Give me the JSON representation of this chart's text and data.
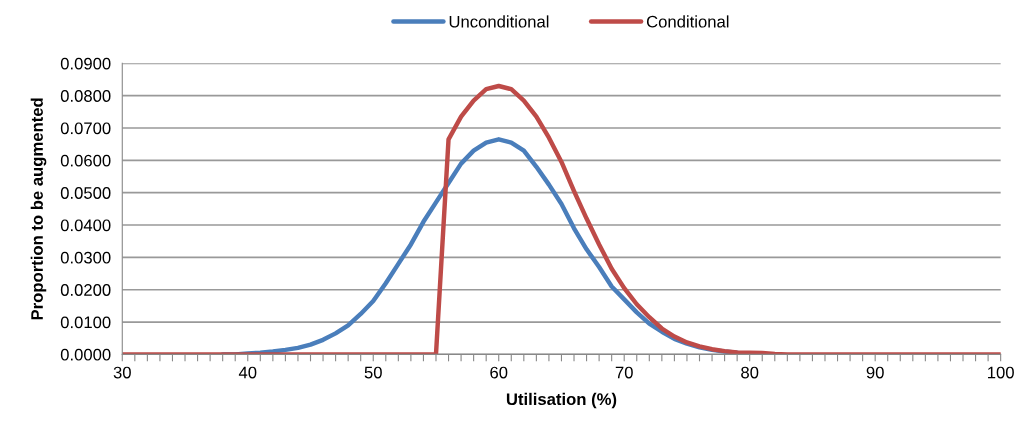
{
  "chart_data": {
    "type": "line",
    "xlabel": "Utilisation (%)",
    "ylabel": "Proportion to be augmented",
    "x": [
      30,
      31,
      32,
      33,
      34,
      35,
      36,
      37,
      38,
      39,
      40,
      41,
      42,
      43,
      44,
      45,
      46,
      47,
      48,
      49,
      50,
      51,
      52,
      53,
      54,
      55,
      56,
      57,
      58,
      59,
      60,
      61,
      62,
      63,
      64,
      65,
      66,
      67,
      68,
      69,
      70,
      71,
      72,
      73,
      74,
      75,
      76,
      77,
      78,
      79,
      80,
      81,
      82,
      83,
      84,
      85,
      86,
      87,
      88,
      89,
      90,
      91,
      92,
      93,
      94,
      95,
      96,
      97,
      98,
      99,
      100
    ],
    "series": [
      {
        "name": "Unconditional",
        "color": "#4a7ebb",
        "values": [
          null,
          null,
          null,
          null,
          null,
          null,
          null,
          null,
          0,
          0,
          0.0003,
          0.0005,
          0.0009,
          0.0014,
          0.002,
          0.003,
          0.0045,
          0.0065,
          0.009,
          0.0125,
          0.0165,
          0.022,
          0.028,
          0.034,
          0.041,
          0.047,
          0.053,
          0.059,
          0.063,
          0.0655,
          0.0665,
          0.0655,
          0.063,
          0.058,
          0.0525,
          0.0465,
          0.039,
          0.0325,
          0.027,
          0.021,
          0.017,
          0.013,
          0.0095,
          0.007,
          0.0048,
          0.0033,
          0.0022,
          0.0014,
          0.0009,
          0.0005,
          null,
          null,
          null,
          null,
          null,
          null,
          null,
          null,
          null,
          null,
          null,
          null,
          null,
          null,
          null,
          null,
          null,
          null,
          null,
          null,
          null
        ]
      },
      {
        "name": "Conditional",
        "color": "#be4b48",
        "values": [
          0,
          0,
          0,
          0,
          0,
          0,
          0,
          0,
          0,
          0,
          0,
          0,
          0,
          0,
          0,
          0,
          0,
          0,
          0,
          0,
          0,
          0,
          0,
          0,
          0,
          0,
          0.0665,
          0.0735,
          0.0785,
          0.082,
          0.083,
          0.082,
          0.0785,
          0.0735,
          0.067,
          0.0595,
          0.0505,
          0.042,
          0.034,
          0.0265,
          0.0205,
          0.0155,
          0.0115,
          0.008,
          0.0055,
          0.0037,
          0.0025,
          0.0016,
          0.001,
          0.0006,
          0.0005,
          0.0004,
          0.0001,
          0,
          0,
          0,
          0,
          0,
          0,
          0,
          0,
          0,
          0,
          0,
          0,
          0,
          0,
          0,
          0,
          0,
          0
        ]
      }
    ],
    "xlim": [
      30,
      100
    ],
    "xticks": [
      30,
      {
        "value": 31,
        "label": null
      },
      {
        "value": 32,
        "label": null
      },
      {
        "value": 33,
        "label": null
      },
      {
        "value": 34,
        "label": null
      },
      {
        "value": 35,
        "label": null
      },
      {
        "value": 36,
        "label": null
      },
      {
        "value": 37,
        "label": null
      },
      {
        "value": 38,
        "label": null
      },
      {
        "value": 39,
        "label": null
      },
      40,
      {
        "value": 41,
        "label": null
      },
      {
        "value": 42,
        "label": null
      },
      {
        "value": 43,
        "label": null
      },
      {
        "value": 44,
        "label": null
      },
      {
        "value": 45,
        "label": null
      },
      {
        "value": 46,
        "label": null
      },
      {
        "value": 47,
        "label": null
      },
      {
        "value": 48,
        "label": null
      },
      {
        "value": 49,
        "label": null
      },
      50,
      {
        "value": 51,
        "label": null
      },
      {
        "value": 52,
        "label": null
      },
      {
        "value": 53,
        "label": null
      },
      {
        "value": 54,
        "label": null
      },
      {
        "value": 55,
        "label": null
      },
      {
        "value": 56,
        "label": null
      },
      {
        "value": 57,
        "label": null
      },
      {
        "value": 58,
        "label": null
      },
      {
        "value": 59,
        "label": null
      },
      60,
      {
        "value": 61,
        "label": null
      },
      {
        "value": 62,
        "label": null
      },
      {
        "value": 63,
        "label": null
      },
      {
        "value": 64,
        "label": null
      },
      {
        "value": 65,
        "label": null
      },
      {
        "value": 66,
        "label": null
      },
      {
        "value": 67,
        "label": null
      },
      {
        "value": 68,
        "label": null
      },
      {
        "value": 69,
        "label": null
      },
      70,
      {
        "value": 71,
        "label": null
      },
      {
        "value": 72,
        "label": null
      },
      {
        "value": 73,
        "label": null
      },
      {
        "value": 74,
        "label": null
      },
      {
        "value": 75,
        "label": null
      },
      {
        "value": 76,
        "label": null
      },
      {
        "value": 77,
        "label": null
      },
      {
        "value": 78,
        "label": null
      },
      {
        "value": 79,
        "label": null
      },
      80,
      {
        "value": 81,
        "label": null
      },
      {
        "value": 82,
        "label": null
      },
      {
        "value": 83,
        "label": null
      },
      {
        "value": 84,
        "label": null
      },
      {
        "value": 85,
        "label": null
      },
      {
        "value": 86,
        "label": null
      },
      {
        "value": 87,
        "label": null
      },
      {
        "value": 88,
        "label": null
      },
      {
        "value": 89,
        "label": null
      },
      90,
      {
        "value": 91,
        "label": null
      },
      {
        "value": 92,
        "label": null
      },
      {
        "value": 93,
        "label": null
      },
      {
        "value": 94,
        "label": null
      },
      {
        "value": 95,
        "label": null
      },
      {
        "value": 96,
        "label": null
      },
      {
        "value": 97,
        "label": null
      },
      {
        "value": 98,
        "label": null
      },
      {
        "value": 99,
        "label": null
      },
      100
    ],
    "ylim": [
      0,
      0.09
    ],
    "yticks": [
      {
        "value": 0,
        "label": "0.0000"
      },
      {
        "value": 0.01,
        "label": "0.0100"
      },
      {
        "value": 0.02,
        "label": "0.0200"
      },
      {
        "value": 0.03,
        "label": "0.0300"
      },
      {
        "value": 0.04,
        "label": "0.0400"
      },
      {
        "value": 0.05,
        "label": "0.0500"
      },
      {
        "value": 0.06,
        "label": "0.0600"
      },
      {
        "value": 0.07,
        "label": "0.0700"
      },
      {
        "value": 0.08,
        "label": "0.0800"
      },
      {
        "value": 0.09,
        "label": "0.0900"
      }
    ],
    "grid": "y",
    "legend": "top",
    "marker": "none",
    "line_style": "solid"
  }
}
